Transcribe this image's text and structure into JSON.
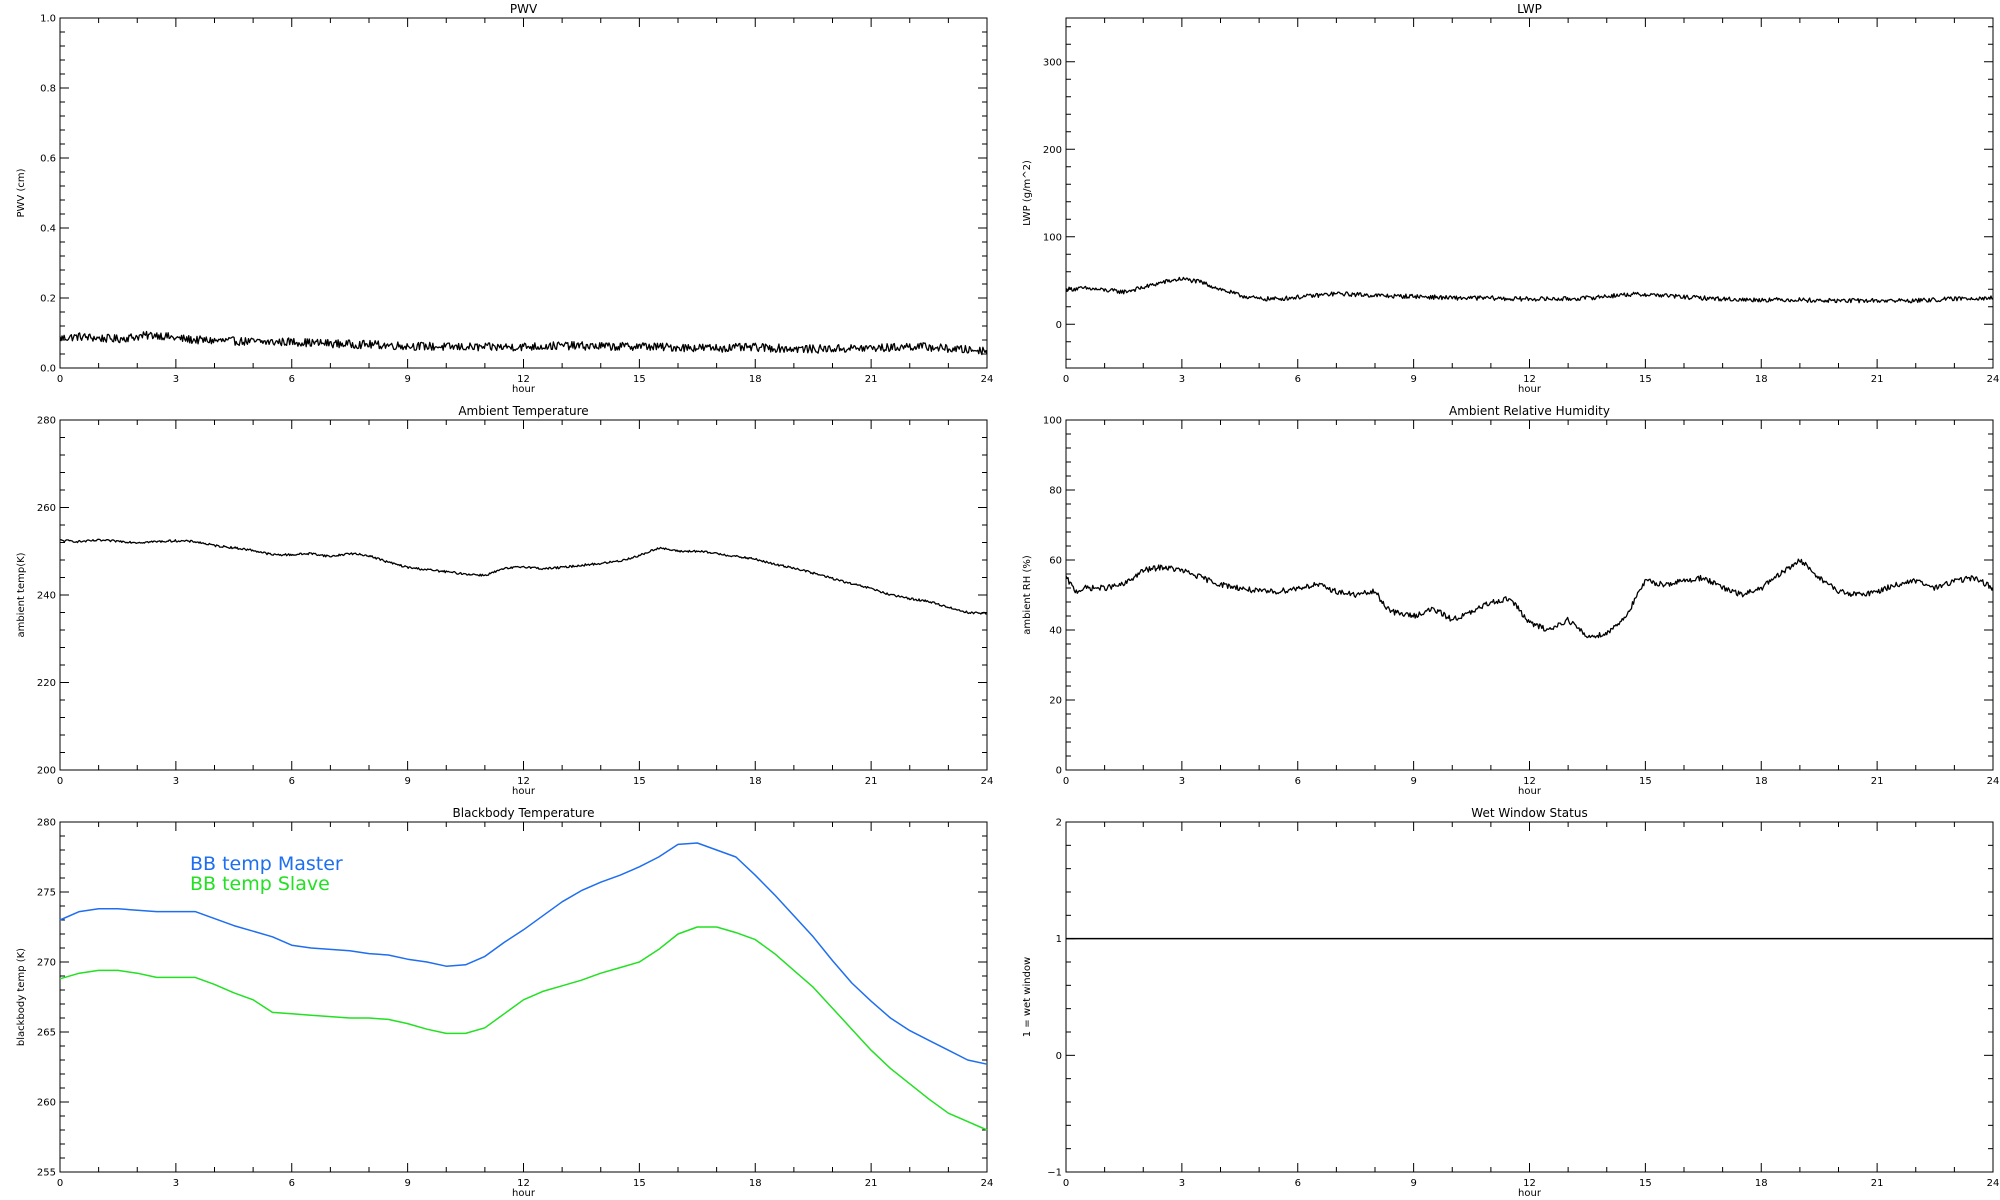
{
  "chart_data": [
    {
      "id": "pwv",
      "type": "line",
      "title": "PWV",
      "xlabel": "hour",
      "ylabel": "PWV (cm)",
      "xlim": [
        0,
        24
      ],
      "ylim": [
        0.0,
        1.0
      ],
      "xticks": [
        0,
        3,
        6,
        9,
        12,
        15,
        18,
        21,
        24
      ],
      "yticks": [
        "0.0",
        "0.2",
        "0.4",
        "0.6",
        "0.8",
        "1.0"
      ],
      "noise": 0.012,
      "series": [
        {
          "color": "#000000",
          "x": [
            0,
            0.5,
            1,
            1.5,
            2,
            2.5,
            3,
            3.5,
            4,
            4.5,
            5,
            5.5,
            6,
            6.5,
            7,
            7.5,
            8,
            8.5,
            9,
            9.5,
            10,
            10.5,
            11,
            11.5,
            12,
            12.5,
            13,
            13.5,
            14,
            14.5,
            15,
            15.5,
            16,
            16.5,
            17,
            17.5,
            18,
            18.5,
            19,
            19.5,
            20,
            20.5,
            21,
            21.5,
            22,
            22.5,
            23,
            23.5,
            24
          ],
          "y": [
            0.085,
            0.09,
            0.085,
            0.083,
            0.09,
            0.095,
            0.085,
            0.08,
            0.078,
            0.077,
            0.075,
            0.074,
            0.075,
            0.072,
            0.07,
            0.068,
            0.067,
            0.065,
            0.063,
            0.062,
            0.06,
            0.06,
            0.059,
            0.06,
            0.061,
            0.062,
            0.064,
            0.063,
            0.062,
            0.061,
            0.063,
            0.06,
            0.059,
            0.058,
            0.057,
            0.058,
            0.059,
            0.057,
            0.055,
            0.054,
            0.055,
            0.056,
            0.057,
            0.058,
            0.062,
            0.06,
            0.055,
            0.052,
            0.05
          ]
        }
      ]
    },
    {
      "id": "lwp",
      "type": "line",
      "title": "LWP",
      "xlabel": "hour",
      "ylabel": "LWP (g/m^2)",
      "xlim": [
        0,
        24
      ],
      "ylim": [
        -50,
        350
      ],
      "xticks": [
        0,
        3,
        6,
        9,
        12,
        15,
        18,
        21,
        24
      ],
      "yticks": [
        "0",
        "100",
        "200",
        "300"
      ],
      "noise": 2.5,
      "series": [
        {
          "color": "#000000",
          "x": [
            0,
            0.5,
            1,
            1.5,
            2,
            2.5,
            3,
            3.5,
            4,
            4.5,
            5,
            5.5,
            6,
            6.5,
            7,
            7.5,
            8,
            8.5,
            9,
            9.5,
            10,
            10.5,
            11,
            11.5,
            12,
            12.5,
            13,
            13.5,
            14,
            14.5,
            15,
            15.5,
            16,
            16.5,
            17,
            17.5,
            18,
            18.5,
            19,
            19.5,
            20,
            20.5,
            21,
            21.5,
            22,
            22.5,
            23,
            23.5,
            24
          ],
          "y": [
            40,
            41,
            39,
            37,
            42,
            48,
            52,
            48,
            40,
            33,
            29,
            29,
            31,
            33,
            35,
            34,
            33,
            32,
            32,
            31,
            30,
            30,
            30,
            29,
            29,
            29,
            29,
            30,
            32,
            34,
            34,
            33,
            31,
            30,
            29,
            28,
            28,
            28,
            28,
            27,
            27,
            27,
            27,
            27,
            27,
            28,
            29,
            30,
            30
          ]
        }
      ]
    },
    {
      "id": "ambient-temperature",
      "type": "line",
      "title": "Ambient Temperature",
      "xlabel": "hour",
      "ylabel": "ambient temp(K)",
      "xlim": [
        0,
        24
      ],
      "ylim": [
        200,
        280
      ],
      "xticks": [
        0,
        3,
        6,
        9,
        12,
        15,
        18,
        21,
        24
      ],
      "yticks": [
        "200",
        "220",
        "240",
        "260",
        "280"
      ],
      "noise": 0.25,
      "series": [
        {
          "color": "#000000",
          "x": [
            0,
            0.5,
            1,
            1.5,
            2,
            2.5,
            3,
            3.5,
            4,
            4.5,
            5,
            5.5,
            6,
            6.5,
            7,
            7.5,
            8,
            8.5,
            9,
            9.5,
            10,
            10.5,
            11,
            11.5,
            12,
            12.5,
            13,
            13.5,
            14,
            14.5,
            15,
            15.5,
            16,
            16.5,
            17,
            17.5,
            18,
            18.5,
            19,
            19.5,
            20,
            20.5,
            21,
            21.5,
            22,
            22.5,
            23,
            23.5,
            24
          ],
          "y": [
            252.5,
            252.2,
            252.5,
            252.3,
            252.0,
            252.2,
            252.4,
            252.2,
            251.3,
            250.8,
            250.2,
            249.2,
            249.2,
            249.5,
            248.8,
            249.5,
            249.0,
            247.5,
            246.3,
            245.8,
            245.3,
            244.8,
            244.5,
            246.0,
            246.5,
            246.0,
            246.3,
            246.8,
            247.2,
            247.8,
            249.0,
            250.8,
            250.0,
            250.0,
            249.5,
            248.8,
            248.2,
            247.0,
            246.2,
            245.0,
            243.8,
            242.5,
            241.5,
            240.0,
            239.2,
            238.5,
            237.2,
            236.0,
            235.8
          ]
        }
      ]
    },
    {
      "id": "ambient-relative-humidity",
      "type": "line",
      "title": "Ambient Relative Humidity",
      "xlabel": "hour",
      "ylabel": "ambient RH (%)",
      "xlim": [
        0,
        24
      ],
      "ylim": [
        0,
        100
      ],
      "xticks": [
        0,
        3,
        6,
        9,
        12,
        15,
        18,
        21,
        24
      ],
      "yticks": [
        "0",
        "20",
        "40",
        "60",
        "80",
        "100"
      ],
      "noise": 0.8,
      "series": [
        {
          "color": "#000000",
          "x": [
            0,
            0.25,
            0.5,
            1,
            1.5,
            2,
            2.5,
            3,
            3.5,
            4,
            4.5,
            5,
            5.5,
            6,
            6.5,
            7,
            7.5,
            8,
            8.25,
            8.5,
            9,
            9.5,
            10,
            10.5,
            11,
            11.5,
            12,
            12.5,
            13,
            13.5,
            14,
            14.5,
            15,
            15.5,
            16,
            16.5,
            17,
            17.5,
            18,
            18.5,
            19,
            19.5,
            20,
            20.5,
            21,
            21.5,
            22,
            22.5,
            23,
            23.5,
            24
          ],
          "y": [
            55,
            51,
            52,
            52,
            53,
            57,
            58,
            57,
            55,
            53,
            52,
            51,
            51,
            52,
            53,
            51,
            50,
            51,
            47,
            45,
            44,
            46,
            43,
            45,
            48,
            49,
            42,
            40,
            43,
            38,
            39,
            44,
            54,
            53,
            54,
            55,
            52,
            50,
            52,
            56,
            60,
            55,
            51,
            50,
            51,
            53,
            54,
            52,
            54,
            55,
            52
          ]
        }
      ]
    },
    {
      "id": "blackbody-temperature",
      "type": "line",
      "title": "Blackbody Temperature",
      "xlabel": "hour",
      "ylabel": "blackbody temp (K)",
      "xlim": [
        0,
        24
      ],
      "ylim": [
        255,
        280
      ],
      "xticks": [
        0,
        3,
        6,
        9,
        12,
        15,
        18,
        21,
        24
      ],
      "yticks": [
        "255",
        "260",
        "265",
        "270",
        "275",
        "280"
      ],
      "noise": 0,
      "series": [
        {
          "name": "BB temp Master",
          "color": "#1e6ef0",
          "x": [
            0,
            0.5,
            1,
            1.5,
            2,
            2.5,
            3,
            3.5,
            4,
            4.5,
            5,
            5.5,
            6,
            6.5,
            7,
            7.5,
            8,
            8.5,
            9,
            9.5,
            10,
            10.5,
            11,
            11.5,
            12,
            12.5,
            13,
            13.5,
            14,
            14.5,
            15,
            15.5,
            16,
            16.5,
            17,
            17.5,
            18,
            18.5,
            19,
            19.5,
            20,
            20.5,
            21,
            21.5,
            22,
            22.5,
            23,
            23.5,
            24
          ],
          "y": [
            273.0,
            273.6,
            273.8,
            273.8,
            273.7,
            273.6,
            273.6,
            273.6,
            273.1,
            272.6,
            272.2,
            271.8,
            271.2,
            271.0,
            270.9,
            270.8,
            270.6,
            270.5,
            270.2,
            270.0,
            269.7,
            269.8,
            270.4,
            271.4,
            272.3,
            273.3,
            274.3,
            275.1,
            275.7,
            276.2,
            276.8,
            277.5,
            278.4,
            278.5,
            278.0,
            277.5,
            276.2,
            274.8,
            273.3,
            271.8,
            270.1,
            268.5,
            267.2,
            266.0,
            265.1,
            264.4,
            263.7,
            263.0,
            262.7
          ]
        },
        {
          "name": "BB temp Slave",
          "color": "#22e022",
          "x": [
            0,
            0.5,
            1,
            1.5,
            2,
            2.5,
            3,
            3.5,
            4,
            4.5,
            5,
            5.5,
            6,
            6.5,
            7,
            7.5,
            8,
            8.5,
            9,
            9.5,
            10,
            10.5,
            11,
            11.5,
            12,
            12.5,
            13,
            13.5,
            14,
            14.5,
            15,
            15.5,
            16,
            16.5,
            17,
            17.5,
            18,
            18.5,
            19,
            19.5,
            20,
            20.5,
            21,
            21.5,
            22,
            22.5,
            23,
            23.5,
            24
          ],
          "y": [
            268.8,
            269.2,
            269.4,
            269.4,
            269.2,
            268.9,
            268.9,
            268.9,
            268.4,
            267.8,
            267.3,
            266.4,
            266.3,
            266.2,
            266.1,
            266.0,
            266.0,
            265.9,
            265.6,
            265.2,
            264.9,
            264.9,
            265.3,
            266.3,
            267.3,
            267.9,
            268.3,
            268.7,
            269.2,
            269.6,
            270.0,
            270.9,
            272.0,
            272.5,
            272.5,
            272.1,
            271.6,
            270.6,
            269.4,
            268.2,
            266.7,
            265.2,
            263.7,
            262.4,
            261.3,
            260.2,
            259.2,
            258.6,
            258.0
          ]
        }
      ]
    },
    {
      "id": "wet-window-status",
      "type": "line",
      "title": "Wet Window Status",
      "xlabel": "hour",
      "ylabel": "1 = wet window",
      "xlim": [
        0,
        24
      ],
      "ylim": [
        -1,
        2
      ],
      "xticks": [
        0,
        3,
        6,
        9,
        12,
        15,
        18,
        21,
        24
      ],
      "yticks": [
        "−1",
        "0",
        "1",
        "2"
      ],
      "noise": 0,
      "series": [
        {
          "color": "#000000",
          "x": [
            0,
            24
          ],
          "y": [
            1,
            1
          ]
        }
      ]
    }
  ]
}
